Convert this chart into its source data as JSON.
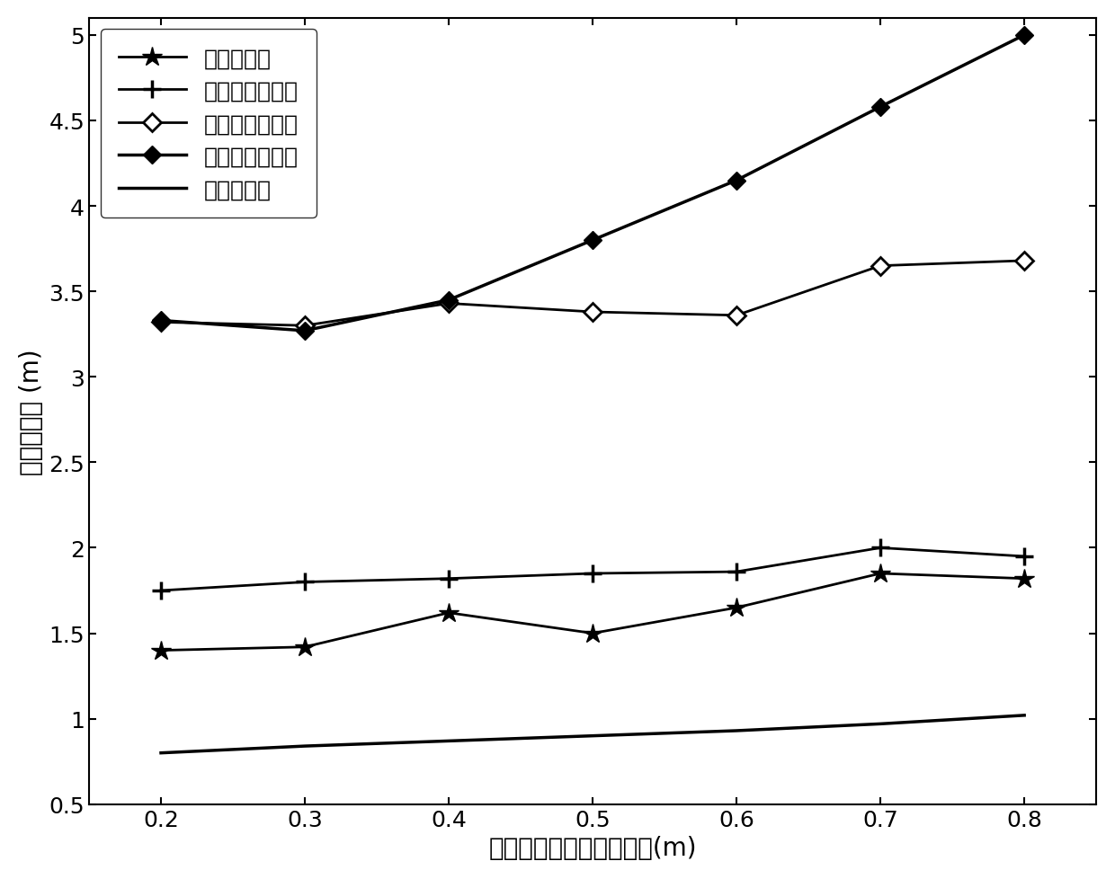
{
  "x": [
    0.2,
    0.3,
    0.4,
    0.5,
    0.6,
    0.7,
    0.8
  ],
  "series": [
    {
      "label": "本发明方法",
      "values": [
        1.4,
        1.42,
        1.62,
        1.5,
        1.65,
        1.85,
        1.82
      ],
      "marker": "star",
      "linewidth": 2.0
    },
    {
      "label": "第一种现有方法",
      "values": [
        1.75,
        1.8,
        1.82,
        1.85,
        1.86,
        2.0,
        1.95
      ],
      "marker": "plus",
      "linewidth": 2.0
    },
    {
      "label": "第二种现有方法",
      "values": [
        3.32,
        3.3,
        3.43,
        3.38,
        3.36,
        3.65,
        3.68
      ],
      "marker": "diamond",
      "linewidth": 2.0
    },
    {
      "label": "第三种现有方法",
      "values": [
        3.33,
        3.27,
        3.45,
        3.8,
        4.15,
        4.58,
        5.0
      ],
      "marker": "filled_diamond",
      "linewidth": 2.5
    },
    {
      "label": "克拉美罗界",
      "values": [
        0.8,
        0.84,
        0.87,
        0.9,
        0.93,
        0.97,
        1.02
      ],
      "marker": "none",
      "linewidth": 2.5
    }
  ],
  "xlabel": "距离测量値噪声的标准差(m)",
  "ylabel": "均方根误差 (m)",
  "xlim": [
    0.15,
    0.85
  ],
  "ylim": [
    0.5,
    5.1
  ],
  "xticks": [
    0.2,
    0.3,
    0.4,
    0.5,
    0.6,
    0.7,
    0.8
  ],
  "yticks": [
    0.5,
    1.0,
    1.5,
    2.0,
    2.5,
    3.0,
    3.5,
    4.0,
    4.5,
    5.0
  ],
  "legend_loc": "upper left",
  "color": "#000000",
  "background_color": "#ffffff",
  "fontsize_ticks": 18,
  "fontsize_labels": 20,
  "fontsize_legend": 18
}
